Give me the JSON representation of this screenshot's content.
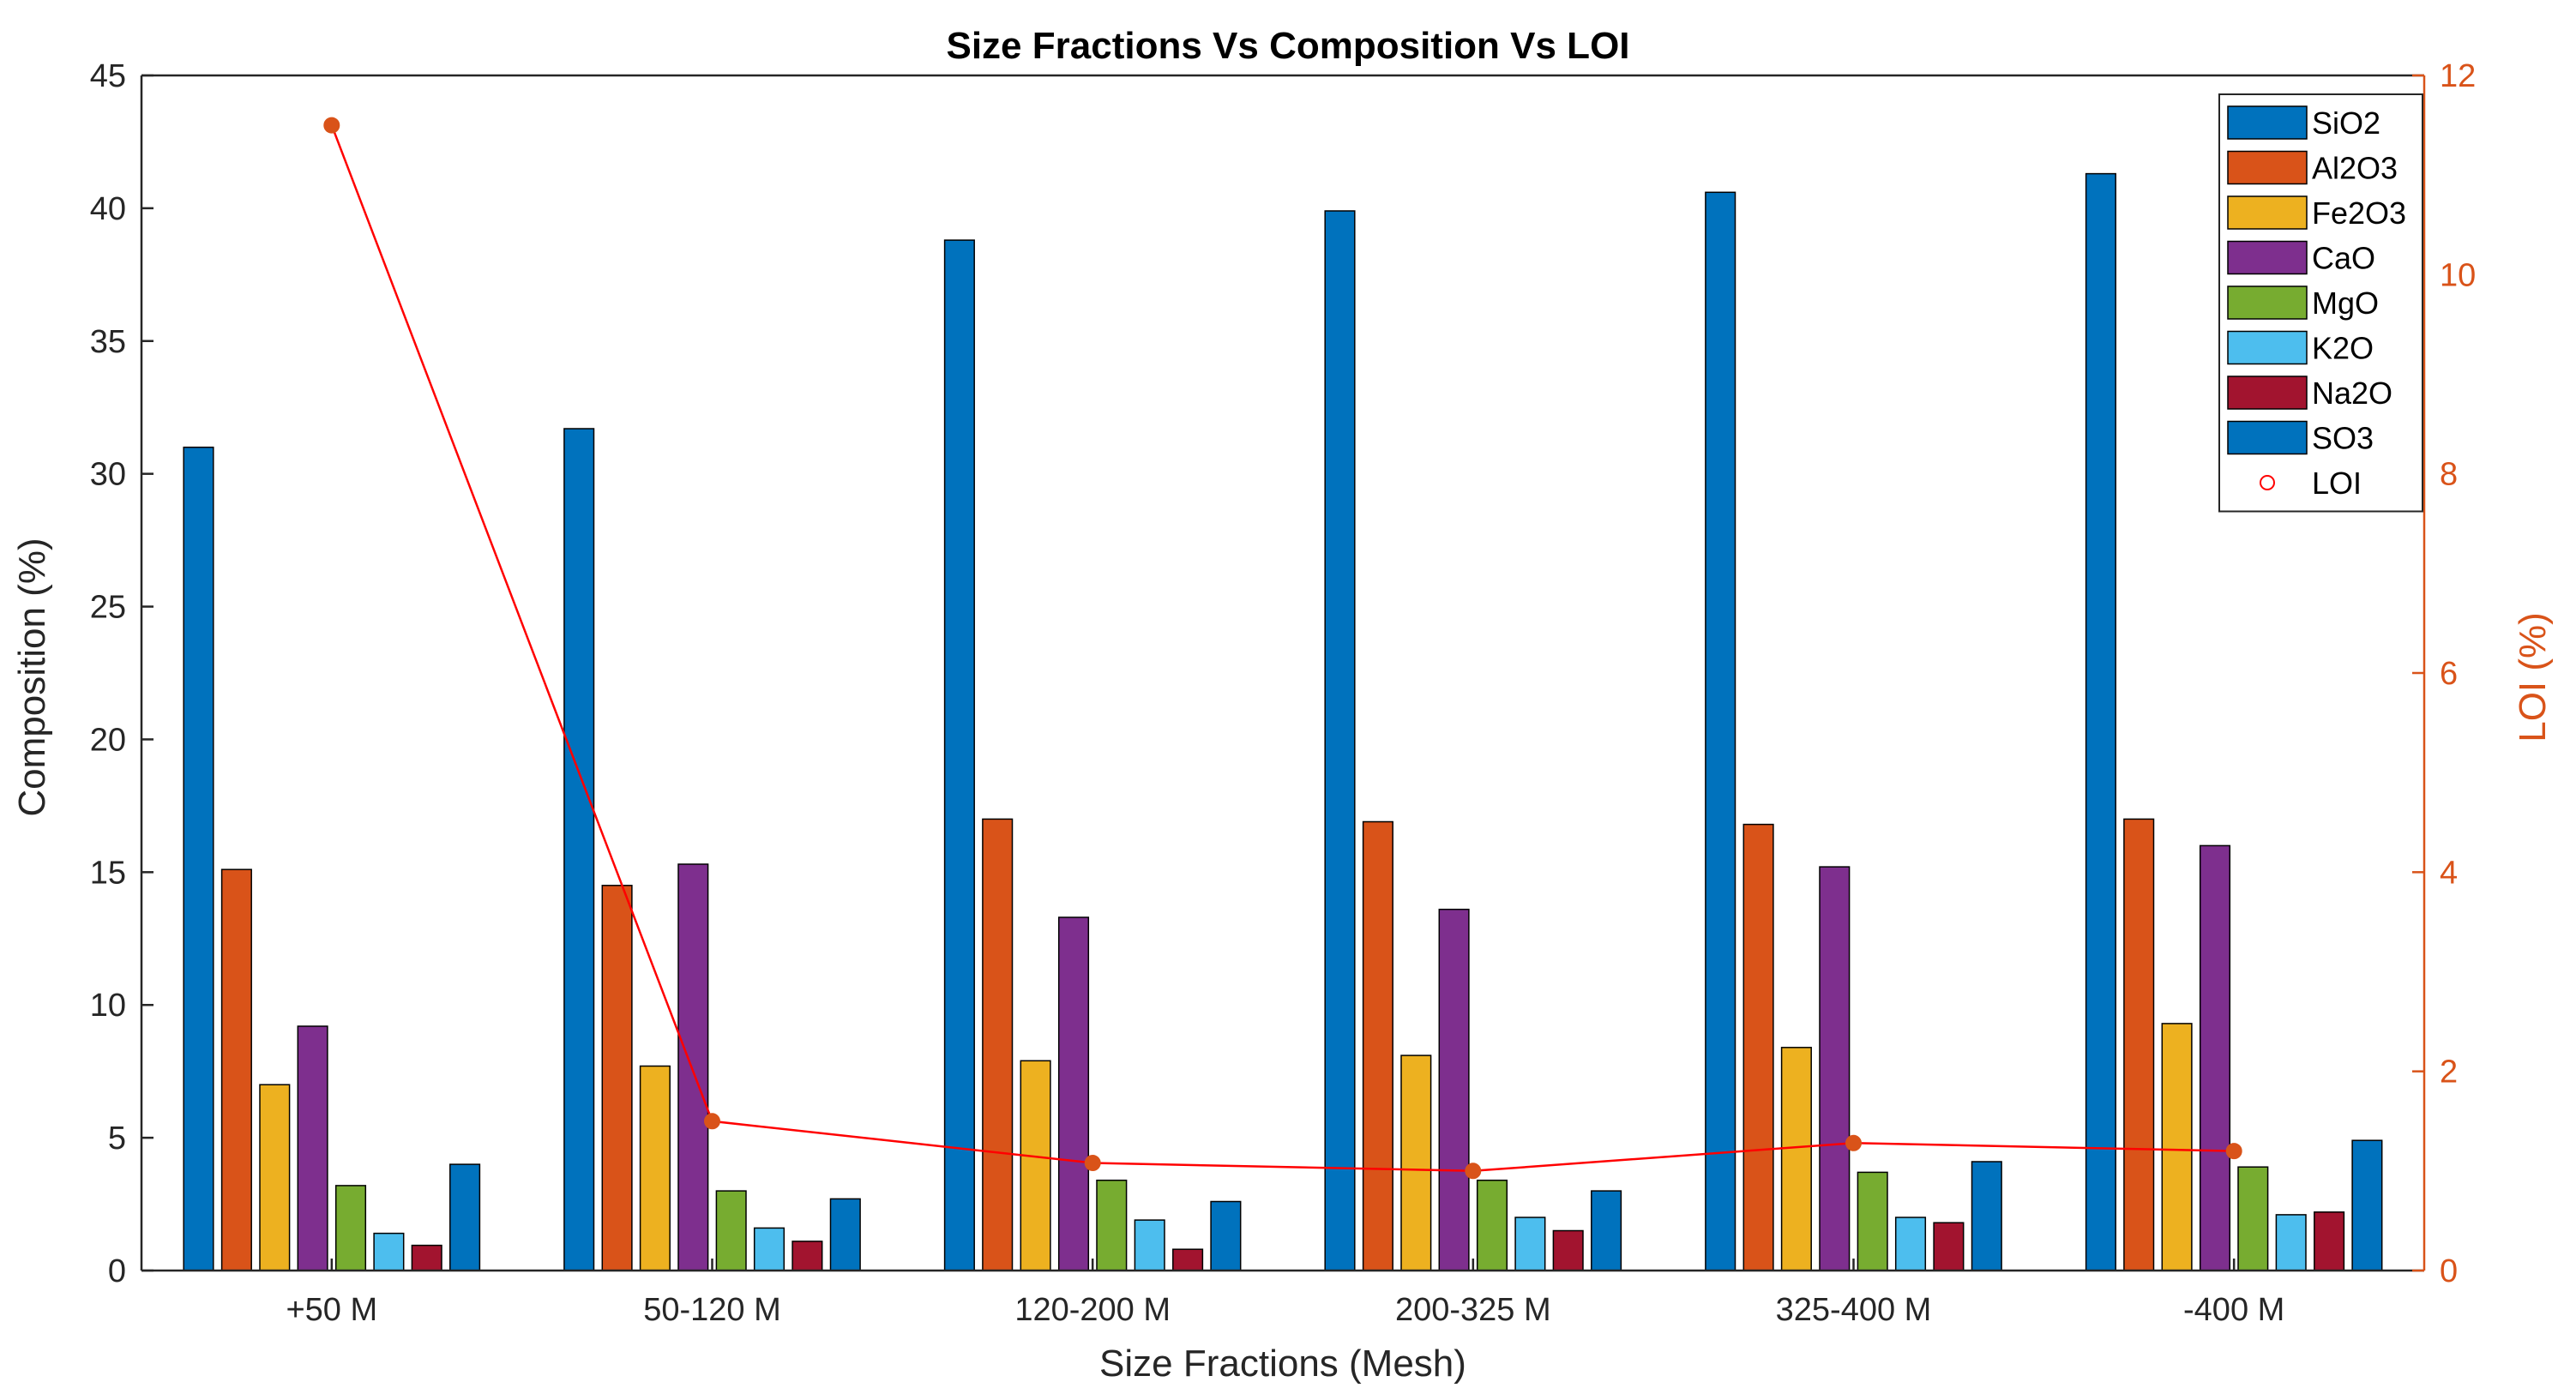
{
  "chart_data": {
    "type": "bar",
    "title": "Size Fractions Vs Composition Vs LOI",
    "xlabel": "Size Fractions (Mesh)",
    "ylabel": "Composition (%)",
    "y2label": "LOI (%)",
    "ylim": [
      0,
      45
    ],
    "y2lim": [
      0,
      12
    ],
    "yticks": [
      "0",
      "5",
      "10",
      "15",
      "20",
      "25",
      "30",
      "35",
      "40",
      "45"
    ],
    "y2ticks": [
      "0",
      "2",
      "4",
      "6",
      "8",
      "10",
      "12"
    ],
    "categories": [
      "+50 M",
      "50-120 M",
      "120-200 M",
      "200-325 M",
      "325-400 M",
      "-400 M"
    ],
    "series": [
      {
        "name": "SiO2",
        "color": "#0072BD",
        "values": [
          31.0,
          31.7,
          38.8,
          39.9,
          40.6,
          41.3
        ]
      },
      {
        "name": "Al2O3",
        "color": "#D95319",
        "values": [
          15.1,
          14.5,
          17.0,
          16.9,
          16.8,
          17.0
        ]
      },
      {
        "name": "Fe2O3",
        "color": "#EDB120",
        "values": [
          7.0,
          7.7,
          7.9,
          8.1,
          8.4,
          9.3
        ]
      },
      {
        "name": "CaO",
        "color": "#7E2F8E",
        "values": [
          9.2,
          15.3,
          13.3,
          13.6,
          15.2,
          16.0
        ]
      },
      {
        "name": "MgO",
        "color": "#77AC30",
        "values": [
          3.2,
          3.0,
          3.4,
          3.4,
          3.7,
          3.9
        ]
      },
      {
        "name": "K2O",
        "color": "#4DBEEE",
        "values": [
          1.4,
          1.6,
          1.9,
          2.0,
          2.0,
          2.1
        ]
      },
      {
        "name": "Na2O",
        "color": "#A2142F",
        "values": [
          0.95,
          1.1,
          0.8,
          1.5,
          1.8,
          2.2
        ]
      },
      {
        "name": "SO3",
        "color": "#0072BD",
        "values": [
          4.0,
          2.7,
          2.6,
          3.0,
          4.1,
          4.9
        ]
      }
    ],
    "line_series": {
      "name": "LOI",
      "axis": "right",
      "color": "#FF0000",
      "marker_color": "#D95319",
      "values": [
        11.5,
        1.5,
        1.08,
        1.0,
        1.28,
        1.2
      ]
    },
    "legend": "top-right",
    "grid": false
  }
}
